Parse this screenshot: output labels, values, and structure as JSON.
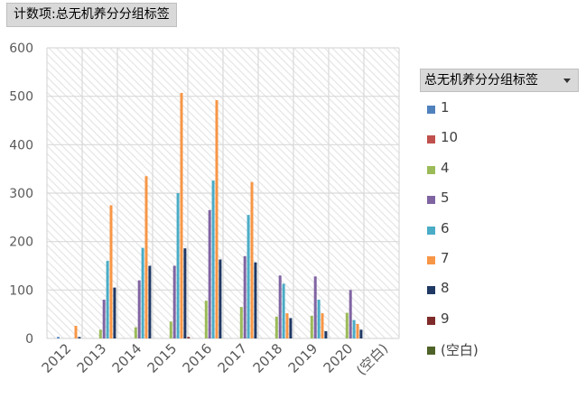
{
  "field_button": "计数项:总无机养分分组标签",
  "legend_button": "总无机养分分组标签",
  "chart_data": {
    "type": "bar",
    "title": "",
    "xlabel": "",
    "ylabel": "",
    "ylim": [
      0,
      600
    ],
    "yticks": [
      0,
      100,
      200,
      300,
      400,
      500,
      600
    ],
    "grid": true,
    "legend_position": "right",
    "categories": [
      "2012",
      "2013",
      "2014",
      "2015",
      "2016",
      "2017",
      "2018",
      "2019",
      "2020",
      "(空白)"
    ],
    "series": [
      {
        "name": "1",
        "color": "#4f81bd",
        "values": [
          3,
          0,
          0,
          0,
          0,
          0,
          0,
          0,
          0,
          0
        ]
      },
      {
        "name": "10",
        "color": "#c0504d",
        "values": [
          0,
          0,
          0,
          0,
          0,
          0,
          0,
          0,
          0,
          0
        ]
      },
      {
        "name": "4",
        "color": "#9bbb59",
        "values": [
          0,
          18,
          23,
          35,
          78,
          65,
          45,
          47,
          53,
          0
        ]
      },
      {
        "name": "5",
        "color": "#8064a2",
        "values": [
          0,
          80,
          120,
          150,
          265,
          170,
          130,
          128,
          100,
          0
        ]
      },
      {
        "name": "6",
        "color": "#4bacc6",
        "values": [
          0,
          160,
          187,
          300,
          326,
          255,
          113,
          80,
          38,
          0
        ]
      },
      {
        "name": "7",
        "color": "#f79646",
        "values": [
          26,
          275,
          335,
          507,
          492,
          323,
          52,
          52,
          30,
          0
        ]
      },
      {
        "name": "8",
        "color": "#1f3864",
        "values": [
          3,
          105,
          150,
          186,
          163,
          157,
          42,
          15,
          18,
          0
        ]
      },
      {
        "name": "9",
        "color": "#7f2b2a",
        "values": [
          0,
          0,
          0,
          3,
          0,
          0,
          0,
          0,
          0,
          0
        ]
      },
      {
        "name": "(空白)",
        "color": "#4f6228",
        "values": [
          0,
          0,
          0,
          0,
          0,
          0,
          0,
          0,
          0,
          0
        ]
      }
    ]
  }
}
